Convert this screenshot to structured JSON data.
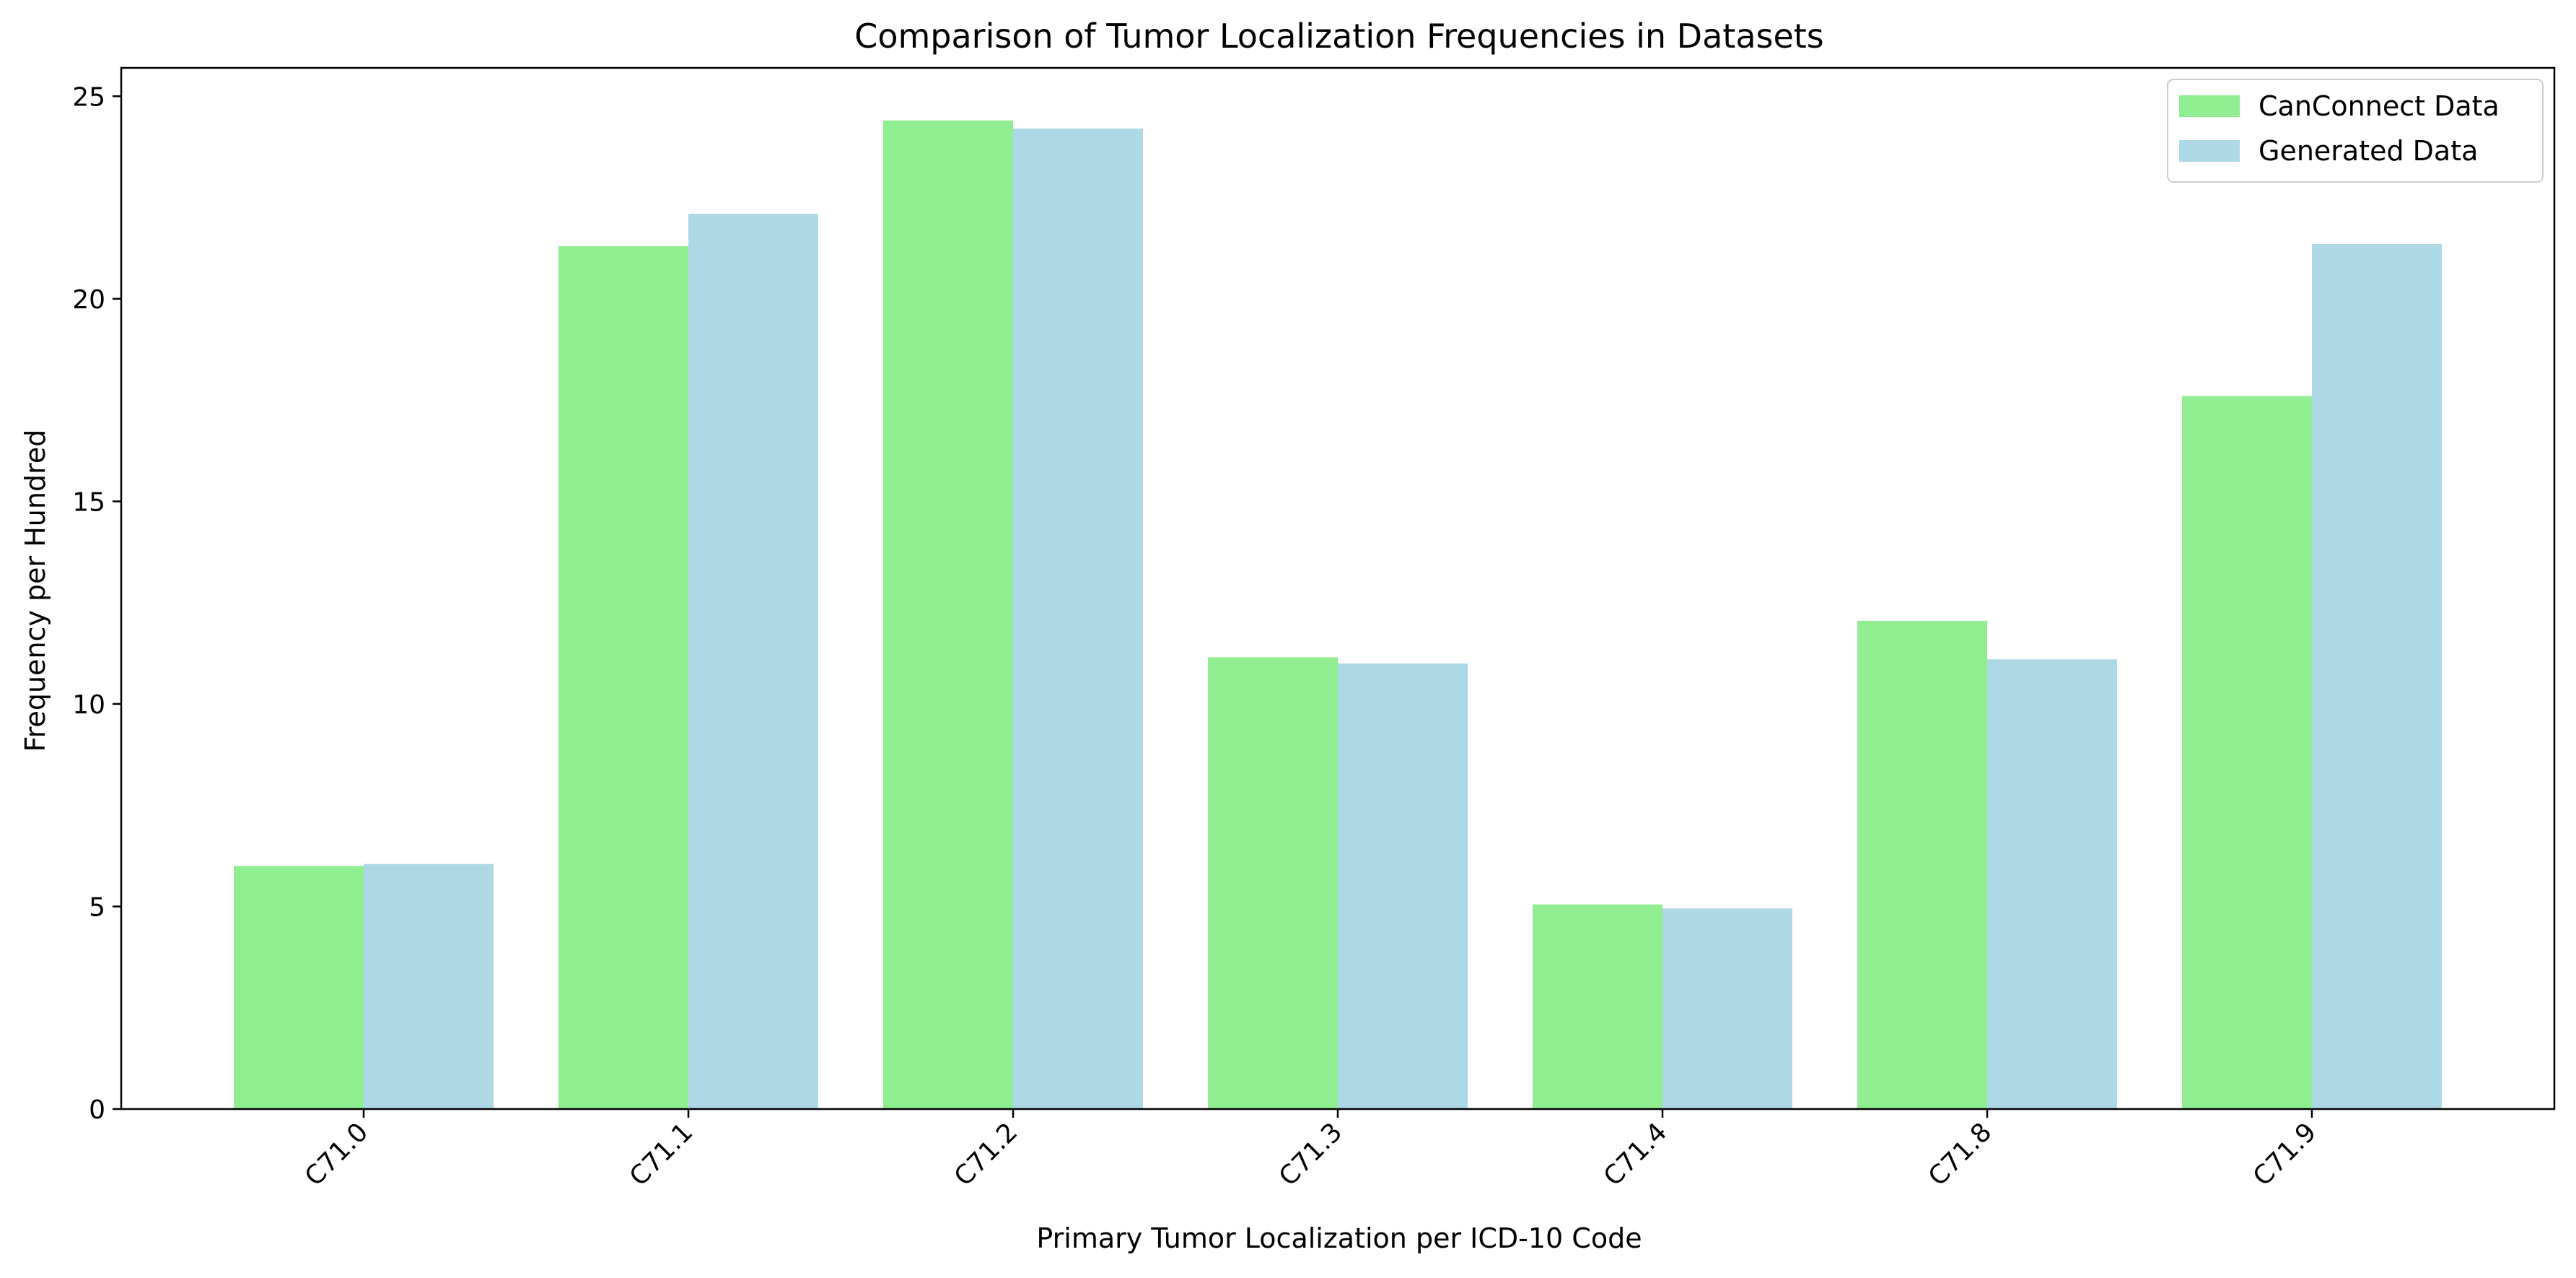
{
  "chart_data": {
    "type": "bar",
    "title": "Comparison of Tumor Localization Frequencies in Datasets",
    "xlabel": "Primary Tumor Localization per ICD-10 Code",
    "ylabel": "Frequency per Hundred",
    "categories": [
      "C71.0",
      "C71.1",
      "C71.2",
      "C71.3",
      "C71.4",
      "C71.8",
      "C71.9"
    ],
    "series": [
      {
        "name": "CanConnect Data",
        "color": "#90ee90",
        "values": [
          6.0,
          21.3,
          24.4,
          11.15,
          5.05,
          12.05,
          17.6
        ]
      },
      {
        "name": "Generated Data",
        "color": "#add8e6",
        "values": [
          6.05,
          22.1,
          24.2,
          11.0,
          4.95,
          11.1,
          21.35
        ]
      }
    ],
    "ylim": [
      0,
      25.7
    ],
    "yticks": [
      0,
      5,
      10,
      15,
      20,
      25
    ],
    "grid": false,
    "legend_position": "top-right"
  }
}
